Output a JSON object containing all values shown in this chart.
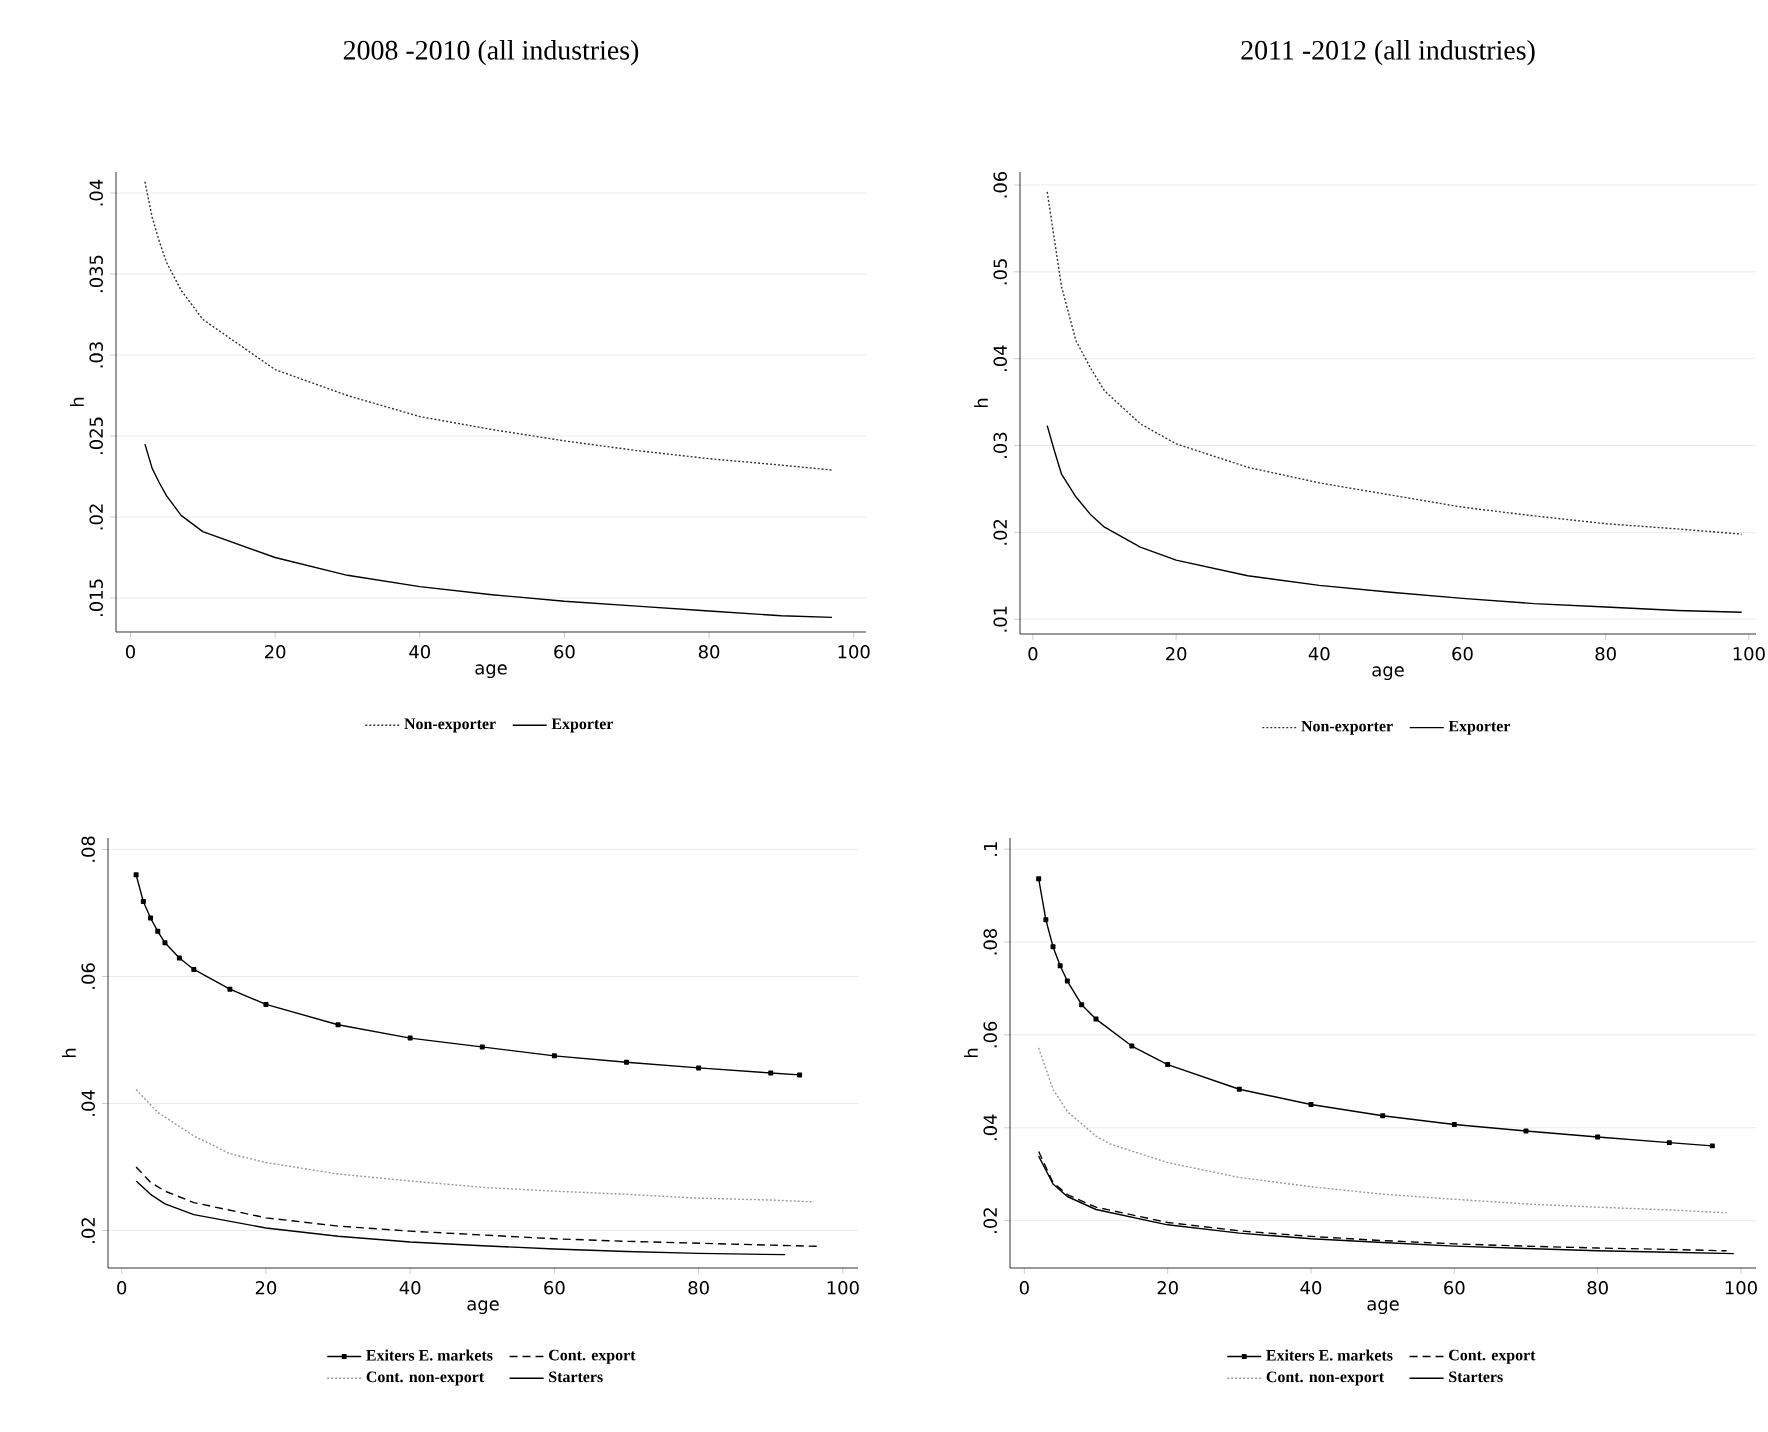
{
  "chart_data": [
    {
      "type": "line",
      "title": "2008 -2010 (all industries)",
      "xlabel": "age",
      "ylabel": "h",
      "xlim": [
        -2,
        101.7
      ],
      "ylim": [
        0.0129,
        0.0413
      ],
      "xticks": [
        0,
        20,
        40,
        60,
        80,
        100
      ],
      "yticks": [
        {
          "value": 0.015,
          "label": ".015"
        },
        {
          "value": 0.02,
          "label": ".02"
        },
        {
          "value": 0.025,
          "label": ".025"
        },
        {
          "value": 0.03,
          "label": ".03"
        },
        {
          "value": 0.035,
          "label": ".035"
        },
        {
          "value": 0.04,
          "label": ".04"
        }
      ],
      "grid": "y",
      "legend": "bottom",
      "series": [
        {
          "name": "Non-exporter",
          "color": "#333333",
          "line_style": "dotted",
          "x": [
            2,
            3,
            4,
            5,
            7,
            10,
            20,
            30,
            40,
            50,
            60,
            70,
            80,
            90,
            97
          ],
          "values": [
            0.0407,
            0.0385,
            0.037,
            0.0357,
            0.034,
            0.0322,
            0.0291,
            0.0275,
            0.0262,
            0.0254,
            0.0247,
            0.0241,
            0.0236,
            0.0232,
            0.0229
          ]
        },
        {
          "name": "Exporter",
          "color": "#000000",
          "line_style": "solid",
          "x": [
            2,
            3,
            4,
            5,
            7,
            10,
            20,
            30,
            40,
            50,
            60,
            70,
            80,
            90,
            97
          ],
          "values": [
            0.0245,
            0.023,
            0.0221,
            0.0213,
            0.0201,
            0.0191,
            0.0175,
            0.0164,
            0.0157,
            0.0152,
            0.0148,
            0.0145,
            0.0142,
            0.0139,
            0.0138
          ]
        }
      ]
    },
    {
      "type": "line",
      "title": "2011 -2012 (all industries)",
      "xlabel": "age",
      "ylabel": "h",
      "xlim": [
        -1.8,
        101
      ],
      "ylim": [
        0.0083,
        0.0615
      ],
      "xticks": [
        0,
        20,
        40,
        60,
        80,
        100
      ],
      "yticks": [
        {
          "value": 0.01,
          "label": ".01"
        },
        {
          "value": 0.02,
          "label": ".02"
        },
        {
          "value": 0.03,
          "label": ".03"
        },
        {
          "value": 0.04,
          "label": ".04"
        },
        {
          "value": 0.05,
          "label": ".05"
        },
        {
          "value": 0.06,
          "label": ".06"
        }
      ],
      "grid": "y",
      "legend": "bottom",
      "series": [
        {
          "name": "Non-exporter",
          "color": "#333333",
          "line_style": "dotted",
          "x": [
            2,
            4,
            6,
            8,
            10,
            15,
            20,
            30,
            40,
            50,
            60,
            70,
            80,
            90,
            99
          ],
          "values": [
            0.0592,
            0.0483,
            0.0421,
            0.039,
            0.0363,
            0.0325,
            0.0302,
            0.0275,
            0.0257,
            0.0243,
            0.0229,
            0.0219,
            0.021,
            0.0204,
            0.0198
          ]
        },
        {
          "name": "Exporter",
          "color": "#000000",
          "line_style": "solid",
          "x": [
            2,
            3,
            4,
            6,
            8,
            10,
            15,
            20,
            30,
            40,
            50,
            60,
            70,
            80,
            90,
            99
          ],
          "values": [
            0.0323,
            0.0294,
            0.0267,
            0.0241,
            0.0221,
            0.0206,
            0.0183,
            0.0168,
            0.015,
            0.0139,
            0.0131,
            0.0124,
            0.0118,
            0.0114,
            0.011,
            0.0108
          ]
        }
      ]
    },
    {
      "type": "line",
      "xlabel": "age",
      "ylabel": "h",
      "xlim": [
        -1.9,
        102.1
      ],
      "ylim": [
        0.0141,
        0.0818
      ],
      "xticks": [
        0,
        20,
        40,
        60,
        80,
        100
      ],
      "yticks": [
        {
          "value": 0.02,
          "label": ".02"
        },
        {
          "value": 0.04,
          "label": ".04"
        },
        {
          "value": 0.06,
          "label": ".06"
        },
        {
          "value": 0.08,
          "label": ".08"
        }
      ],
      "grid": "y",
      "legend": "bottom",
      "series": [
        {
          "name": "Exiters E. markets",
          "color": "#000000",
          "line_style": "solid",
          "marker": "square",
          "x": [
            2,
            3,
            4,
            5,
            6,
            8,
            10,
            15,
            20,
            30,
            40,
            50,
            60,
            70,
            80,
            90,
            94
          ],
          "values": [
            0.076,
            0.0718,
            0.0692,
            0.0671,
            0.0653,
            0.0629,
            0.0611,
            0.058,
            0.0556,
            0.0524,
            0.0503,
            0.0489,
            0.0475,
            0.0465,
            0.0456,
            0.0448,
            0.0445
          ]
        },
        {
          "name": "Cont. export",
          "color": "#000000",
          "line_style": "dashed",
          "x": [
            2,
            4,
            6,
            10,
            20,
            30,
            40,
            50,
            60,
            70,
            80,
            90,
            97
          ],
          "values": [
            0.03,
            0.0276,
            0.0262,
            0.0244,
            0.022,
            0.0207,
            0.0199,
            0.0193,
            0.0187,
            0.0183,
            0.018,
            0.0177,
            0.0175
          ]
        },
        {
          "name": "Cont. non-export",
          "color": "#999999",
          "line_style": "dotted",
          "x": [
            2,
            5,
            10,
            15,
            20,
            30,
            40,
            50,
            60,
            70,
            80,
            90,
            96
          ],
          "values": [
            0.0422,
            0.0386,
            0.0349,
            0.0321,
            0.0307,
            0.0289,
            0.0278,
            0.0268,
            0.0262,
            0.0257,
            0.0251,
            0.0248,
            0.0245
          ]
        },
        {
          "name": "Starters",
          "color": "#000000",
          "line_style": "solid",
          "x": [
            2,
            4,
            6,
            10,
            20,
            30,
            40,
            50,
            60,
            70,
            80,
            92
          ],
          "values": [
            0.0278,
            0.0257,
            0.0242,
            0.0225,
            0.0204,
            0.0191,
            0.0182,
            0.0176,
            0.0171,
            0.0167,
            0.0164,
            0.0162
          ]
        }
      ]
    },
    {
      "type": "line",
      "xlabel": "age",
      "ylabel": "h",
      "xlim": [
        -2,
        102.1
      ],
      "ylim": [
        0.0098,
        0.1024
      ],
      "xticks": [
        0,
        20,
        40,
        60,
        80,
        100
      ],
      "yticks": [
        {
          "value": 0.02,
          "label": ".02"
        },
        {
          "value": 0.04,
          "label": ".04"
        },
        {
          "value": 0.06,
          "label": ".06"
        },
        {
          "value": 0.08,
          "label": ".08"
        },
        {
          "value": 0.1,
          "label": ".1"
        }
      ],
      "grid": "y",
      "legend": "bottom",
      "series": [
        {
          "name": "Exiters E. markets",
          "color": "#000000",
          "line_style": "solid",
          "marker": "square",
          "x": [
            2,
            3,
            4,
            5,
            6,
            8,
            10,
            15,
            20,
            30,
            40,
            50,
            60,
            70,
            80,
            90,
            96
          ],
          "values": [
            0.0936,
            0.0848,
            0.079,
            0.0749,
            0.0716,
            0.0665,
            0.0634,
            0.0576,
            0.0536,
            0.0483,
            0.045,
            0.0426,
            0.0407,
            0.0393,
            0.038,
            0.0368,
            0.0361
          ]
        },
        {
          "name": "Cont. export",
          "color": "#000000",
          "line_style": "dashed",
          "x": [
            2,
            4,
            6,
            10,
            20,
            30,
            40,
            50,
            60,
            70,
            80,
            90,
            98
          ],
          "values": [
            0.0349,
            0.0282,
            0.0256,
            0.0229,
            0.0196,
            0.0178,
            0.0166,
            0.0157,
            0.015,
            0.0145,
            0.0141,
            0.0138,
            0.0135
          ]
        },
        {
          "name": "Cont. non-export",
          "color": "#999999",
          "line_style": "dotted",
          "x": [
            2,
            4,
            6,
            10,
            12,
            20,
            30,
            40,
            50,
            60,
            70,
            80,
            90,
            98
          ],
          "values": [
            0.0572,
            0.0483,
            0.0435,
            0.0382,
            0.0365,
            0.0325,
            0.0293,
            0.0273,
            0.0257,
            0.0246,
            0.0236,
            0.0229,
            0.0223,
            0.0217
          ]
        },
        {
          "name": "Starters",
          "color": "#000000",
          "line_style": "solid",
          "x": [
            2,
            4,
            6,
            10,
            20,
            30,
            40,
            50,
            60,
            70,
            80,
            90,
            99
          ],
          "values": [
            0.0339,
            0.0279,
            0.0252,
            0.0224,
            0.0191,
            0.0173,
            0.0161,
            0.0153,
            0.0145,
            0.014,
            0.0135,
            0.0132,
            0.0129
          ]
        }
      ]
    }
  ]
}
